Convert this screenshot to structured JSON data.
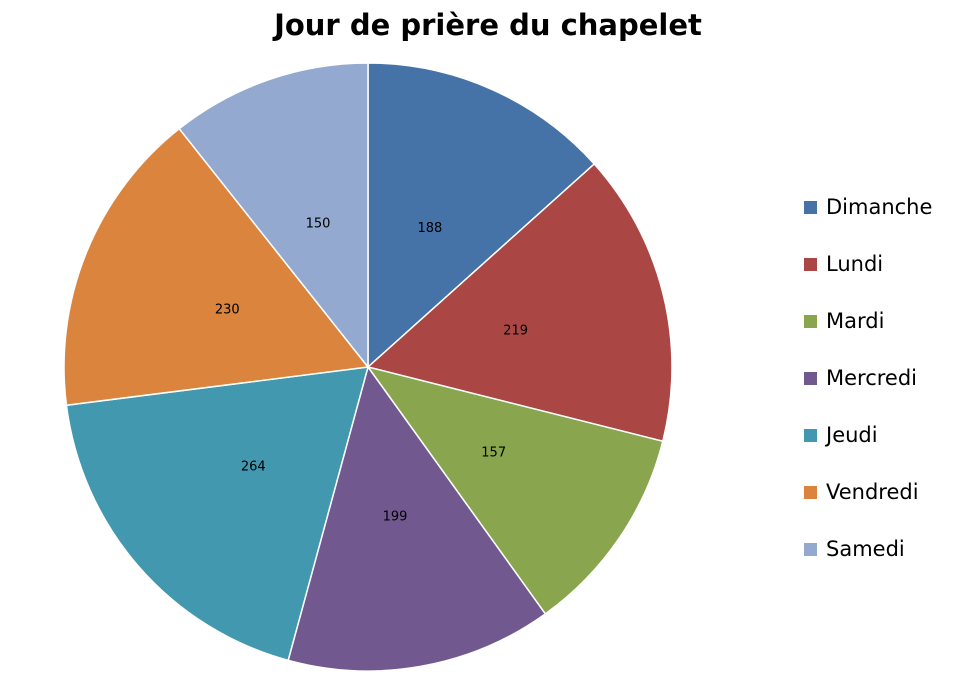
{
  "chart_data": {
    "type": "pie",
    "title": "Jour de prière du chapelet",
    "slices": [
      {
        "label": "Dimanche",
        "value": 188,
        "color": "#4572A7"
      },
      {
        "label": "Lundi",
        "value": 219,
        "color": "#AA4643"
      },
      {
        "label": "Mardi",
        "value": 157,
        "color": "#89A54E"
      },
      {
        "label": "Mercredi",
        "value": 199,
        "color": "#71588F"
      },
      {
        "label": "Jeudi",
        "value": 264,
        "color": "#4198AF"
      },
      {
        "label": "Vendredi",
        "value": 230,
        "color": "#DB843D"
      },
      {
        "label": "Samedi",
        "value": 150,
        "color": "#93A9CF"
      }
    ],
    "start_angle": "12 o'clock",
    "direction": "clockwise",
    "legend_position": "right",
    "data_labels": "value"
  }
}
